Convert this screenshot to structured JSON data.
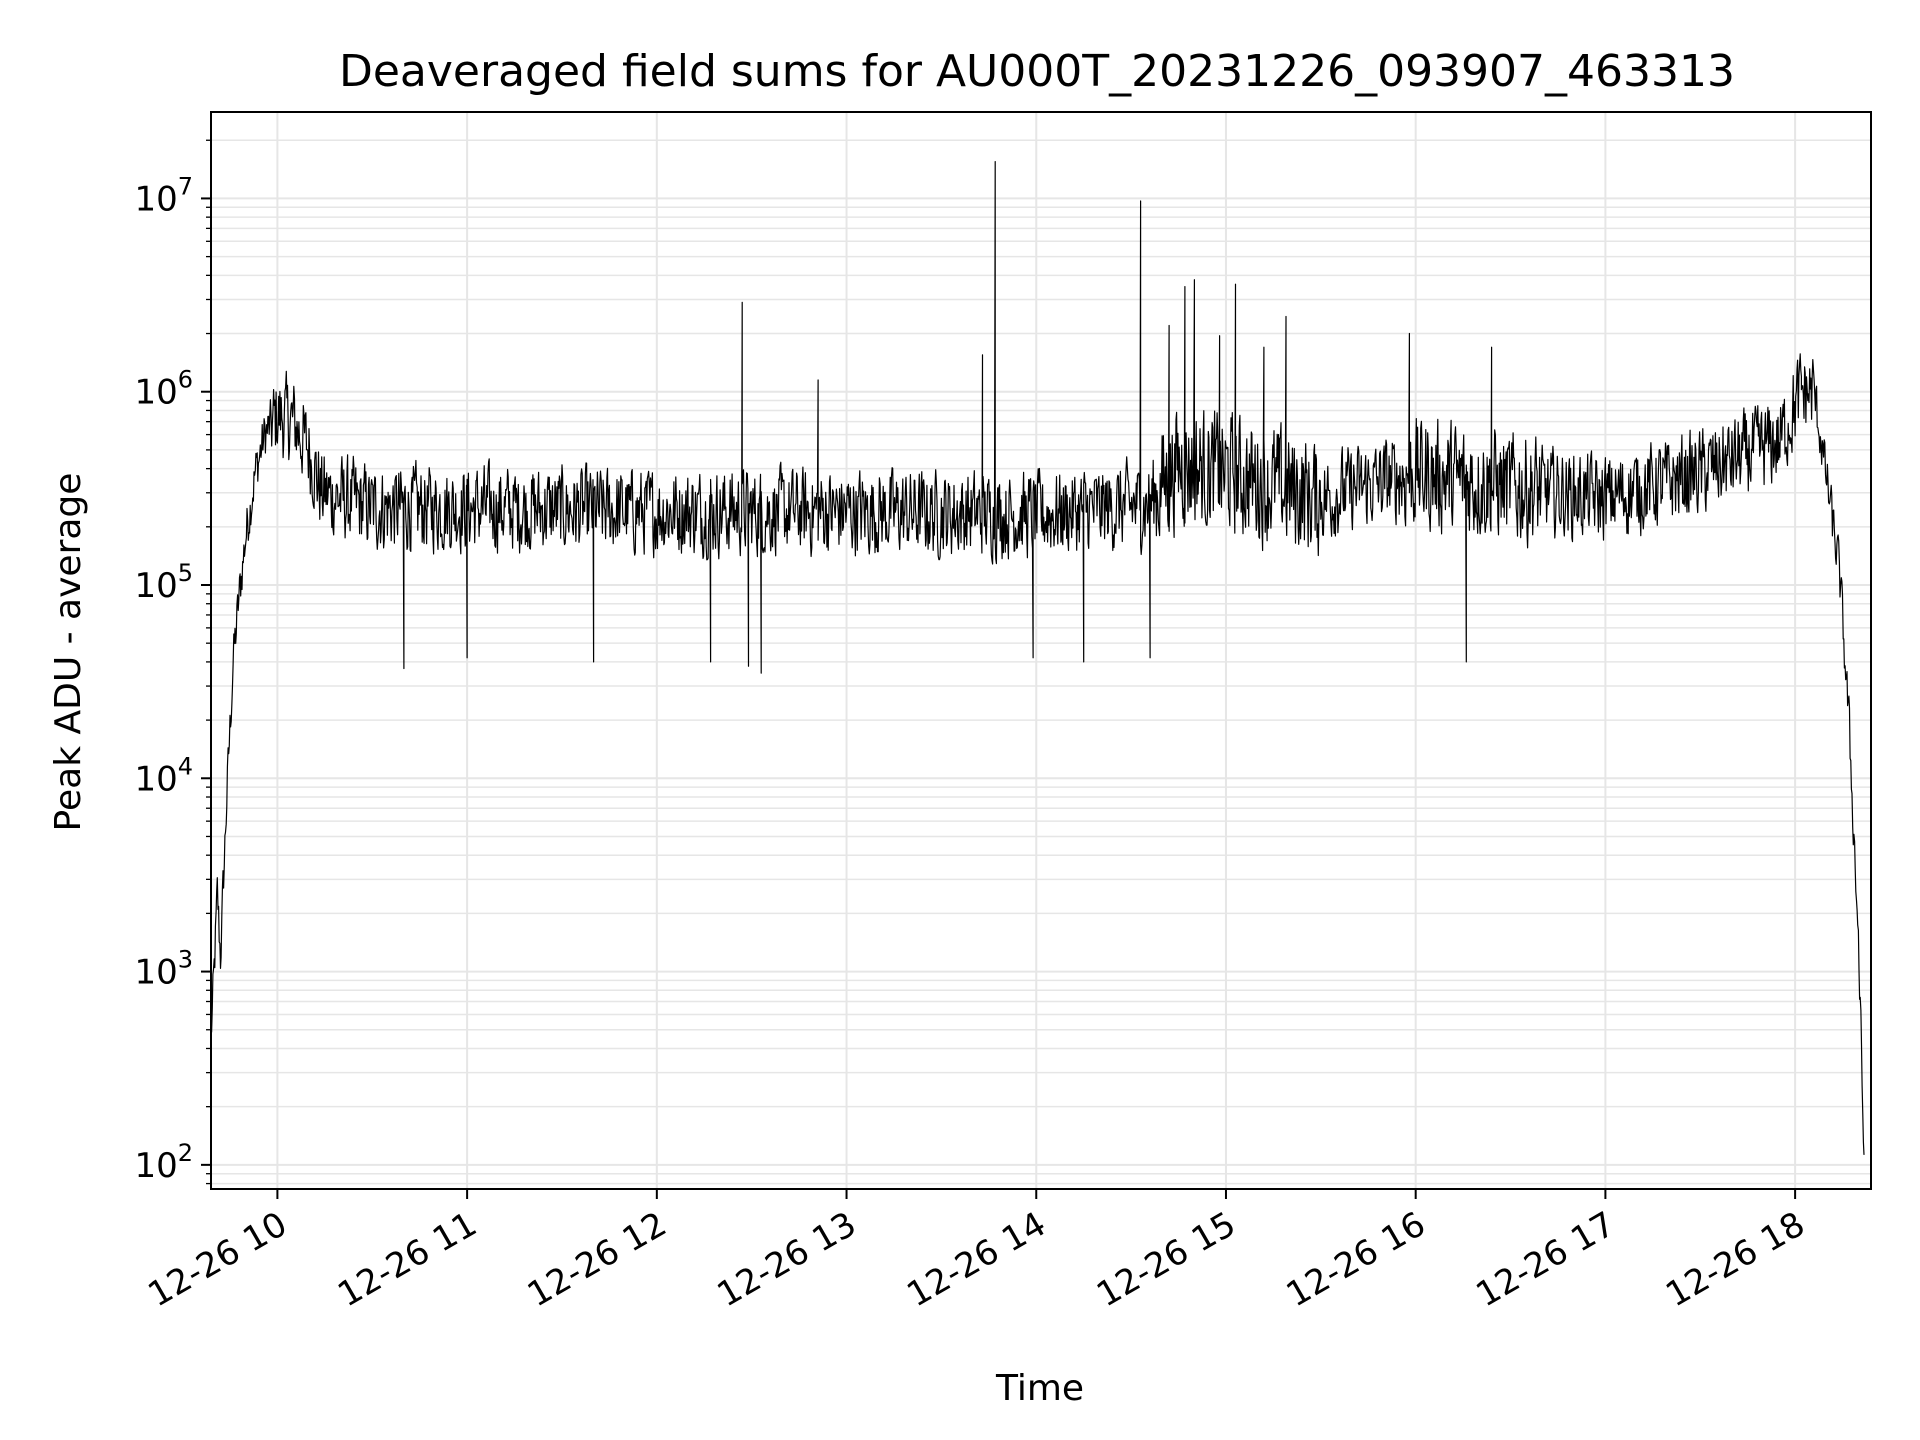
{
  "chart_data": {
    "type": "line",
    "title": "Deaveraged field sums for AU000T_20231226_093907_463313",
    "xlabel": "Time",
    "ylabel": "Peak ADU - average",
    "y_scale": "log",
    "ylim": [
      75,
      28000000
    ],
    "xlim": [
      "2023-12-26 09:39",
      "2023-12-26 18:24"
    ],
    "grid": true,
    "line_color": "#000000",
    "grid_color": "#e6e6e6",
    "x_ticks": [
      {
        "value": "2023-12-26 10:00",
        "label": "12-26 10"
      },
      {
        "value": "2023-12-26 11:00",
        "label": "12-26 11"
      },
      {
        "value": "2023-12-26 12:00",
        "label": "12-26 12"
      },
      {
        "value": "2023-12-26 13:00",
        "label": "12-26 13"
      },
      {
        "value": "2023-12-26 14:00",
        "label": "12-26 14"
      },
      {
        "value": "2023-12-26 15:00",
        "label": "12-26 15"
      },
      {
        "value": "2023-12-26 16:00",
        "label": "12-26 16"
      },
      {
        "value": "2023-12-26 17:00",
        "label": "12-26 17"
      },
      {
        "value": "2023-12-26 18:00",
        "label": "12-26 18"
      }
    ],
    "y_ticks": [
      {
        "value": 100,
        "base": "10",
        "exp": "2"
      },
      {
        "value": 1000,
        "base": "10",
        "exp": "3"
      },
      {
        "value": 10000,
        "base": "10",
        "exp": "4"
      },
      {
        "value": 100000,
        "base": "10",
        "exp": "5"
      },
      {
        "value": 1000000,
        "base": "10",
        "exp": "6"
      },
      {
        "value": 10000000,
        "base": "10",
        "exp": "7"
      }
    ],
    "series": [
      {
        "baseline": [
          {
            "x": "2023-12-26 09:39",
            "y": 450
          },
          {
            "x": "2023-12-26 09:40",
            "y": 1000
          },
          {
            "x": "2023-12-26 09:41",
            "y": 2500
          },
          {
            "x": "2023-12-26 09:42",
            "y": 1200
          },
          {
            "x": "2023-12-26 09:44",
            "y": 8000
          },
          {
            "x": "2023-12-26 09:46",
            "y": 40000
          },
          {
            "x": "2023-12-26 09:48",
            "y": 90000
          },
          {
            "x": "2023-12-26 09:50",
            "y": 180000
          },
          {
            "x": "2023-12-26 09:53",
            "y": 380000
          },
          {
            "x": "2023-12-26 09:56",
            "y": 600000
          },
          {
            "x": "2023-12-26 10:00",
            "y": 750000
          },
          {
            "x": "2023-12-26 10:05",
            "y": 700000
          },
          {
            "x": "2023-12-26 10:10",
            "y": 500000
          },
          {
            "x": "2023-12-26 10:14",
            "y": 300000
          },
          {
            "x": "2023-12-26 10:30",
            "y": 250000
          },
          {
            "x": "2023-12-26 11:00",
            "y": 250000
          },
          {
            "x": "2023-12-26 12:00",
            "y": 240000
          },
          {
            "x": "2023-12-26 13:00",
            "y": 240000
          },
          {
            "x": "2023-12-26 14:00",
            "y": 230000
          },
          {
            "x": "2023-12-26 14:35",
            "y": 260000
          },
          {
            "x": "2023-12-26 14:45",
            "y": 420000
          },
          {
            "x": "2023-12-26 15:00",
            "y": 380000
          },
          {
            "x": "2023-12-26 15:30",
            "y": 280000
          },
          {
            "x": "2023-12-26 16:00",
            "y": 380000
          },
          {
            "x": "2023-12-26 16:30",
            "y": 320000
          },
          {
            "x": "2023-12-26 17:00",
            "y": 280000
          },
          {
            "x": "2023-12-26 17:30",
            "y": 380000
          },
          {
            "x": "2023-12-26 17:55",
            "y": 550000
          },
          {
            "x": "2023-12-26 18:02",
            "y": 1000000
          },
          {
            "x": "2023-12-26 18:06",
            "y": 1000000
          },
          {
            "x": "2023-12-26 18:10",
            "y": 350000
          },
          {
            "x": "2023-12-26 18:14",
            "y": 120000
          },
          {
            "x": "2023-12-26 18:17",
            "y": 20000
          },
          {
            "x": "2023-12-26 18:20",
            "y": 1500
          },
          {
            "x": "2023-12-26 18:22",
            "y": 80
          }
        ],
        "spikes": [
          {
            "x": "2023-12-26 12:27",
            "y": 2900000
          },
          {
            "x": "2023-12-26 12:51",
            "y": 1150000
          },
          {
            "x": "2023-12-26 13:43",
            "y": 1550000
          },
          {
            "x": "2023-12-26 13:47",
            "y": 15500000
          },
          {
            "x": "2023-12-26 14:33",
            "y": 9700000
          },
          {
            "x": "2023-12-26 14:42",
            "y": 2200000
          },
          {
            "x": "2023-12-26 14:47",
            "y": 3500000
          },
          {
            "x": "2023-12-26 14:50",
            "y": 3800000
          },
          {
            "x": "2023-12-26 14:58",
            "y": 1950000
          },
          {
            "x": "2023-12-26 15:03",
            "y": 3600000
          },
          {
            "x": "2023-12-26 15:12",
            "y": 1700000
          },
          {
            "x": "2023-12-26 15:19",
            "y": 2450000
          },
          {
            "x": "2023-12-26 15:58",
            "y": 2000000
          },
          {
            "x": "2023-12-26 16:24",
            "y": 1700000
          },
          {
            "x": "2023-12-26 18:02",
            "y": 1200000
          }
        ],
        "dips": [
          {
            "x": "2023-12-26 10:40",
            "y": 37000
          },
          {
            "x": "2023-12-26 11:00",
            "y": 42000
          },
          {
            "x": "2023-12-26 11:40",
            "y": 40000
          },
          {
            "x": "2023-12-26 12:17",
            "y": 40000
          },
          {
            "x": "2023-12-26 12:29",
            "y": 38000
          },
          {
            "x": "2023-12-26 12:33",
            "y": 35000
          },
          {
            "x": "2023-12-26 13:59",
            "y": 42000
          },
          {
            "x": "2023-12-26 14:15",
            "y": 40000
          },
          {
            "x": "2023-12-26 14:36",
            "y": 42000
          },
          {
            "x": "2023-12-26 16:16",
            "y": 40000
          }
        ]
      }
    ]
  }
}
